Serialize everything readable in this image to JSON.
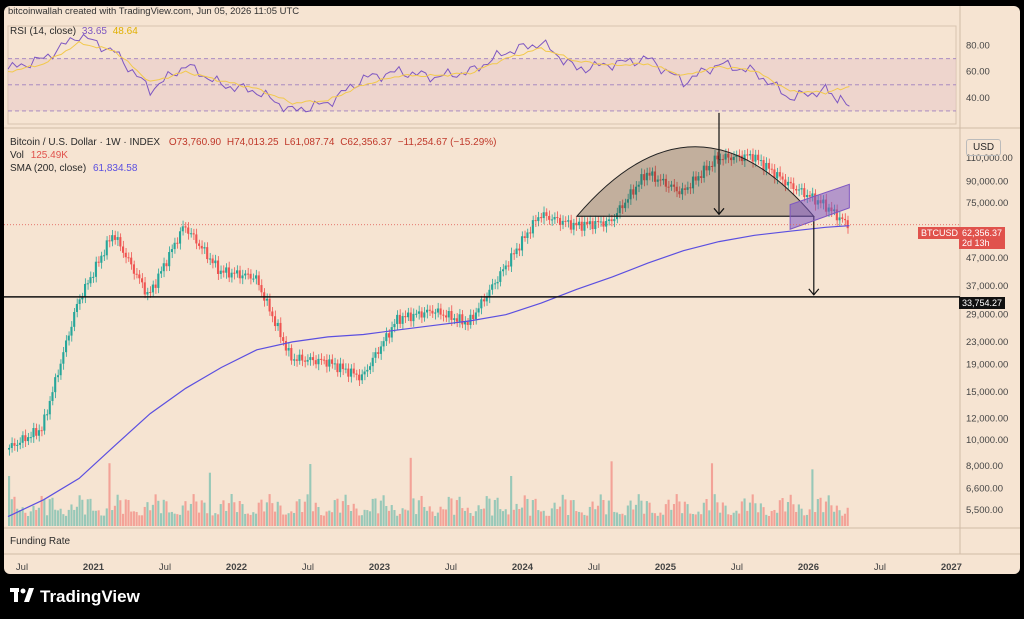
{
  "header": {
    "attribution": "bitcoinwallah created with TradingView.com, Jun 05, 2026 11:05 UTC"
  },
  "rsi_panel": {
    "label": "RSI (14, close)",
    "rsi_value": "33.65",
    "ma_value": "48.64",
    "levels": [
      "80.00",
      "60.00",
      "40.00"
    ]
  },
  "price_panel": {
    "symbol_line": "Bitcoin / U.S. Dollar · 1W · INDEX",
    "open": "O73,760.90",
    "high": "H74,013.25",
    "low": "L61,087.74",
    "close": "C62,356.37",
    "change": "−11,254.67 (−15.29%)",
    "vol_label": "Vol",
    "vol_value": "125.49K",
    "sma_label": "SMA (200, close)",
    "sma_value": "61,834.58",
    "currency": "USD",
    "price_ticks": [
      "110,000.00",
      "90,000.00",
      "75,000.00",
      "47,000.00",
      "37,000.00",
      "29,000.00",
      "23,000.00",
      "19,000.00",
      "15,000.00",
      "12,000.00",
      "10,000.00",
      "8,000.00",
      "6,600.00",
      "5,500.00"
    ],
    "last_price_tag": "62,356.37",
    "last_price_countdown": "2d 13h",
    "ticker_tag": "BTCUSD",
    "support_tag": "33,754.27"
  },
  "funding_panel": {
    "label": "Funding Rate"
  },
  "time_axis": [
    "Jul",
    "2021",
    "Jul",
    "2022",
    "Jul",
    "2023",
    "Jul",
    "2024",
    "Jul",
    "2025",
    "Jul",
    "2026",
    "Jul",
    "2027",
    "Jul"
  ],
  "brand": {
    "name": "TradingView"
  },
  "colors": {
    "up": "#26a69a",
    "down": "#ef5350",
    "sma": "#5b4fe0",
    "rsi": "#7e57c2",
    "rsi_ma": "#f2c94c",
    "tag_red": "#e0524c",
    "support": "#111111"
  },
  "chart_data": [
    {
      "type": "line",
      "title": "RSI (14, close)",
      "ylim": [
        20,
        95
      ],
      "levels": [
        70,
        50,
        30
      ],
      "x": [
        "2020-07",
        "2020-10",
        "2021-01",
        "2021-04",
        "2021-07",
        "2021-10",
        "2022-01",
        "2022-04",
        "2022-07",
        "2022-10",
        "2023-01",
        "2023-04",
        "2023-07",
        "2023-10",
        "2024-01",
        "2024-04",
        "2024-07",
        "2024-10",
        "2025-01",
        "2025-04",
        "2025-07",
        "2025-10",
        "2026-01",
        "2026-04",
        "2026-06"
      ],
      "series": [
        {
          "name": "RSI",
          "values": [
            62,
            70,
            88,
            75,
            46,
            65,
            50,
            45,
            30,
            36,
            55,
            60,
            56,
            60,
            75,
            82,
            62,
            66,
            70,
            52,
            66,
            60,
            40,
            46,
            33.65
          ]
        },
        {
          "name": "MA",
          "values": [
            60,
            66,
            82,
            76,
            52,
            60,
            53,
            47,
            36,
            38,
            50,
            57,
            57,
            59,
            70,
            78,
            68,
            65,
            66,
            57,
            64,
            61,
            45,
            44,
            48.64
          ]
        }
      ]
    },
    {
      "type": "line",
      "title": "Bitcoin / U.S. Dollar · 1W · INDEX",
      "y_scale": "log",
      "ylim": [
        4800,
        135000
      ],
      "x": [
        "2020-07",
        "2020-10",
        "2021-01",
        "2021-04",
        "2021-07",
        "2021-10",
        "2022-01",
        "2022-04",
        "2022-07",
        "2022-10",
        "2023-01",
        "2023-04",
        "2023-07",
        "2023-10",
        "2024-01",
        "2024-04",
        "2024-07",
        "2024-10",
        "2025-01",
        "2025-04",
        "2025-07",
        "2025-10",
        "2026-01",
        "2026-04",
        "2026-06"
      ],
      "series": [
        {
          "name": "BTCUSD",
          "values": [
            9200,
            11000,
            32000,
            58000,
            34000,
            62000,
            42000,
            40000,
            20000,
            19500,
            17000,
            28000,
            30000,
            27000,
            43000,
            68000,
            62000,
            64000,
            97000,
            82000,
            110000,
            112000,
            88000,
            74000,
            62356.37
          ]
        },
        {
          "name": "SMA (200, close)",
          "values": [
            5200,
            6000,
            7200,
            9500,
            12500,
            15500,
            18500,
            21500,
            23000,
            24000,
            24500,
            25500,
            26500,
            27500,
            29000,
            32000,
            36000,
            40000,
            45000,
            50000,
            54000,
            57000,
            59000,
            61000,
            61834.58
          ]
        }
      ],
      "annotations": {
        "support_level": 33754.27,
        "last_price": 62356.37
      }
    },
    {
      "type": "bar",
      "title": "Vol",
      "last_value": "125.49K"
    }
  ]
}
